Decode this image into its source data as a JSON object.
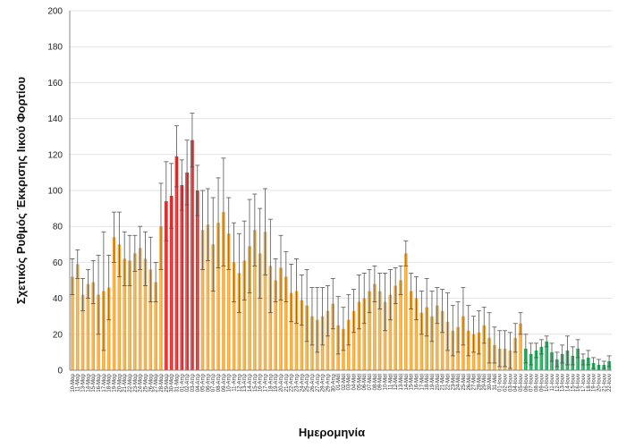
{
  "chart_data": {
    "type": "bar",
    "title": "",
    "xlabel": "Ημερομηνία",
    "ylabel": "Σχετικός Ρυθμός Έκκρισης Ιικού Φορτίου",
    "ylim": [
      0,
      200
    ],
    "yticks": [
      0,
      20,
      40,
      60,
      80,
      100,
      120,
      140,
      160,
      180,
      200
    ],
    "grid": true,
    "colors": {
      "orange": "#F2A93B",
      "red": "#DC2626",
      "green": "#22A65A",
      "error": "#555555"
    },
    "categories": [
      "10-Μαρ",
      "11-Μαρ",
      "13-Μαρ",
      "14-Μαρ",
      "15-Μαρ",
      "16-Μαρ",
      "17-Μαρ",
      "18-Μαρ",
      "19-Μαρ",
      "20-Μαρ",
      "21-Μαρ",
      "22-Μαρ",
      "23-Μαρ",
      "24-Μαρ",
      "25-Μαρ",
      "26-Μαρ",
      "27-Μαρ",
      "28-Μαρ",
      "29-Μαρ",
      "30-Μαρ",
      "31-Μαρ",
      "01-Απρ",
      "02-Απρ",
      "03-Απρ",
      "04-Απρ",
      "05-Απρ",
      "06-Απρ",
      "07-Απρ",
      "08-Απρ",
      "09-Απρ",
      "10-Απρ",
      "11-Απρ",
      "12-Απρ",
      "13-Απρ",
      "14-Απρ",
      "15-Απρ",
      "16-Απρ",
      "17-Απρ",
      "18-Απρ",
      "19-Απρ",
      "20-Απρ",
      "21-Απρ",
      "22-Απρ",
      "23-Απρ",
      "24-Απρ",
      "25-Απρ",
      "26-Απρ",
      "27-Απρ",
      "28-Απρ",
      "29-Απρ",
      "30-Απρ",
      "01-Μαϊ",
      "02-Μαϊ",
      "03-Μαϊ",
      "04-Μαϊ",
      "05-Μαϊ",
      "06-Μαϊ",
      "07-Μαϊ",
      "08-Μαϊ",
      "09-Μαϊ",
      "10-Μαϊ",
      "11-Μαϊ",
      "12-Μαϊ",
      "13-Μαϊ",
      "14-Μαϊ",
      "15-Μαϊ",
      "16-Μαϊ",
      "17-Μαϊ",
      "18-Μαϊ",
      "19-Μαϊ",
      "20-Μαϊ",
      "21-Μαϊ",
      "22-Μαϊ",
      "23-Μαϊ",
      "24-Μαϊ",
      "25-Μαϊ",
      "26-Μαϊ",
      "27-Μαϊ",
      "28-Μαϊ",
      "29-Μαϊ",
      "30-Μαϊ",
      "31-Μαϊ",
      "01-Ιουν",
      "02-Ιουν",
      "03-Ιουν",
      "04-Ιουν",
      "05-Ιουν",
      "06-Ιουν",
      "07-Ιουν",
      "08-Ιουν",
      "09-Ιουν",
      "10-Ιουν",
      "11-Ιουν",
      "12-Ιουν",
      "13-Ιουν",
      "14-Ιουν",
      "15-Ιουν",
      "16-Ιουν",
      "17-Ιουν",
      "18-Ιουν",
      "19-Ιουν",
      "20-Ιουν",
      "21-Ιουν",
      "22-Ιουν"
    ],
    "series": [
      {
        "values": [
          52,
          59,
          42,
          48,
          49,
          42,
          44,
          46,
          74,
          70,
          62,
          61,
          65,
          68,
          62,
          56,
          49,
          80,
          94,
          97,
          119,
          103,
          110,
          128,
          100,
          78,
          81,
          70,
          82,
          88,
          76,
          60,
          54,
          61,
          69,
          78,
          65,
          77,
          58,
          50,
          57,
          52,
          43,
          44,
          39,
          36,
          30,
          28,
          30,
          33,
          37,
          25,
          23,
          28,
          33,
          38,
          40,
          44,
          48,
          44,
          38,
          42,
          47,
          50,
          65,
          44,
          40,
          32,
          35,
          30,
          36,
          33,
          27,
          22,
          24,
          30,
          22,
          20,
          21,
          25,
          18,
          14,
          12,
          12,
          11,
          18,
          26,
          12,
          9,
          11,
          13,
          16,
          10,
          6,
          9,
          11,
          8,
          12,
          6,
          7,
          4,
          3,
          3,
          5
        ],
        "errors": [
          10,
          8,
          9,
          8,
          12,
          22,
          33,
          18,
          14,
          18,
          15,
          14,
          10,
          12,
          15,
          18,
          11,
          24,
          22,
          18,
          17,
          14,
          18,
          15,
          14,
          22,
          20,
          26,
          25,
          30,
          20,
          22,
          22,
          22,
          26,
          20,
          25,
          24,
          26,
          12,
          18,
          14,
          16,
          18,
          14,
          20,
          16,
          18,
          16,
          14,
          14,
          16,
          12,
          14,
          12,
          15,
          14,
          12,
          10,
          10,
          16,
          14,
          10,
          8,
          7,
          10,
          12,
          12,
          16,
          14,
          10,
          12,
          16,
          14,
          14,
          16,
          14,
          10,
          12,
          10,
          14,
          10,
          10,
          10,
          10,
          8,
          6,
          8,
          6,
          4,
          4,
          3,
          5,
          4,
          5,
          8,
          5,
          5,
          3,
          4,
          3,
          3,
          2,
          3
        ],
        "colors_by_index": "0-17 orange, 18-24 red, 25-86 orange, 87-103 green"
      }
    ]
  }
}
